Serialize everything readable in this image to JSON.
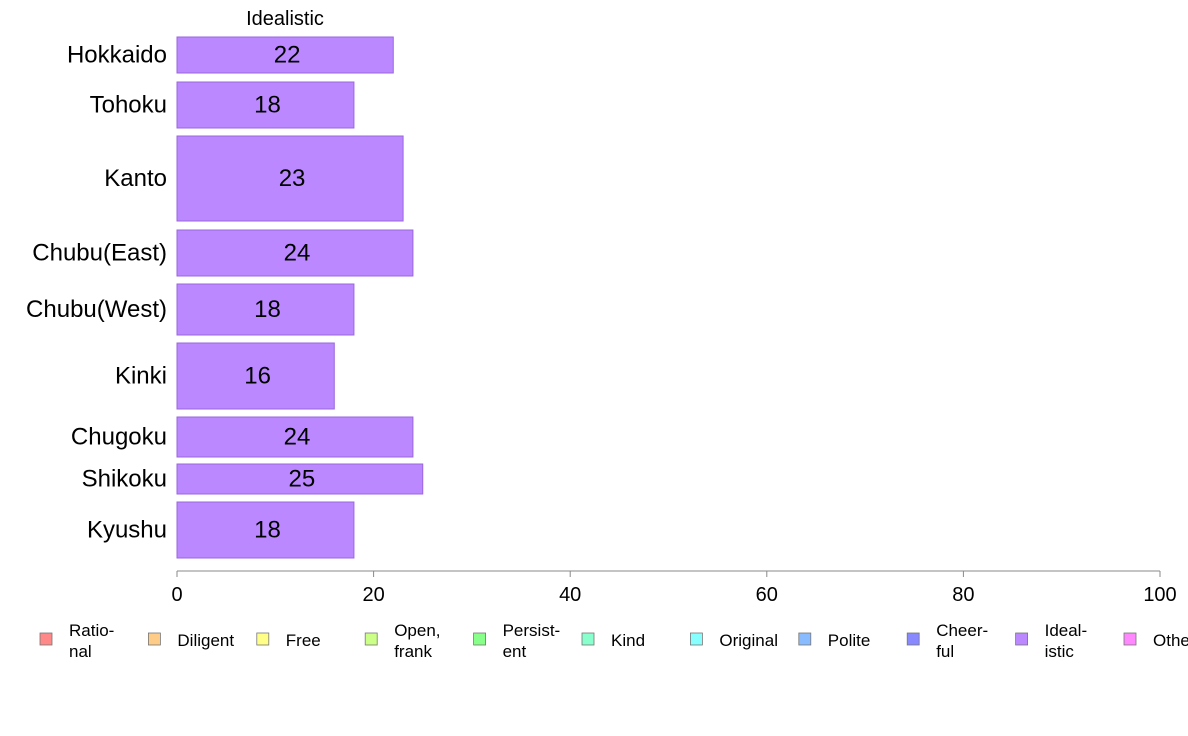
{
  "chart_data": {
    "type": "bar",
    "orientation": "horizontal",
    "title": "Idealistic",
    "categories": [
      "Hokkaido",
      "Tohoku",
      "Kanto",
      "Chubu(East)",
      "Chubu(West)",
      "Kinki",
      "Chugoku",
      "Shikoku",
      "Kyushu"
    ],
    "values": [
      22,
      18,
      23,
      24,
      18,
      16,
      24,
      25,
      18
    ],
    "value_labels": [
      "22",
      "18",
      "23",
      "24",
      "18",
      "16",
      "24",
      "25",
      "18"
    ],
    "xlim": [
      0,
      100
    ],
    "x_ticks": [
      "0",
      "20",
      "40",
      "60",
      "80",
      "100"
    ],
    "grid": false,
    "legend_position": "bottom",
    "bar_color": "#bb88ff",
    "bar_edge_color": "#9966dd",
    "legend": [
      {
        "label": [
          "Ratio-",
          "nal"
        ],
        "color": "#ff8888"
      },
      {
        "label": [
          "Diligent"
        ],
        "color": "#ffcc88"
      },
      {
        "label": [
          "Free"
        ],
        "color": "#ffff88"
      },
      {
        "label": [
          "Open,",
          "frank"
        ],
        "color": "#ccff88"
      },
      {
        "label": [
          "Persist-",
          "ent"
        ],
        "color": "#88ff88"
      },
      {
        "label": [
          "Kind"
        ],
        "color": "#88ffcc"
      },
      {
        "label": [
          "Original"
        ],
        "color": "#88ffff"
      },
      {
        "label": [
          "Polite"
        ],
        "color": "#88bbff"
      },
      {
        "label": [
          "Cheer-",
          "ful"
        ],
        "color": "#8888ff"
      },
      {
        "label": [
          "Ideal-",
          "istic"
        ],
        "color": "#bb88ff"
      },
      {
        "label": [
          "Others"
        ],
        "color": "#ff88ff"
      }
    ]
  }
}
